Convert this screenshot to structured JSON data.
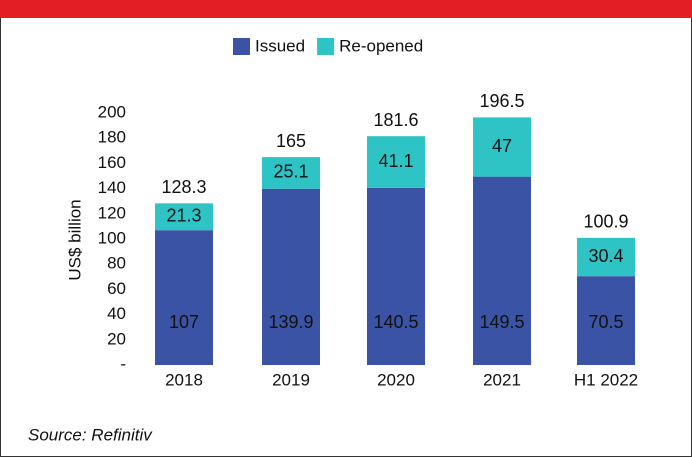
{
  "chart_data": {
    "type": "stacked_bar",
    "categories": [
      "2018",
      "2019",
      "2020",
      "2021",
      "H1 2022"
    ],
    "series": [
      {
        "name": "Issued",
        "color": "#3a53a4",
        "values": [
          107,
          139.9,
          140.5,
          149.5,
          70.5
        ]
      },
      {
        "name": "Re-opened",
        "color": "#2ec4c6",
        "values": [
          21.3,
          25.1,
          41.1,
          47,
          30.4
        ]
      }
    ],
    "totals": [
      128.3,
      165,
      181.6,
      196.5,
      100.9
    ],
    "y_label": "US$ billion",
    "ylim": [
      0,
      200
    ],
    "yticks": [
      {
        "value": 0,
        "label": "-"
      },
      20,
      40,
      60,
      80,
      100,
      120,
      140,
      160,
      180,
      200
    ],
    "source": "Source: Refinitiv"
  }
}
